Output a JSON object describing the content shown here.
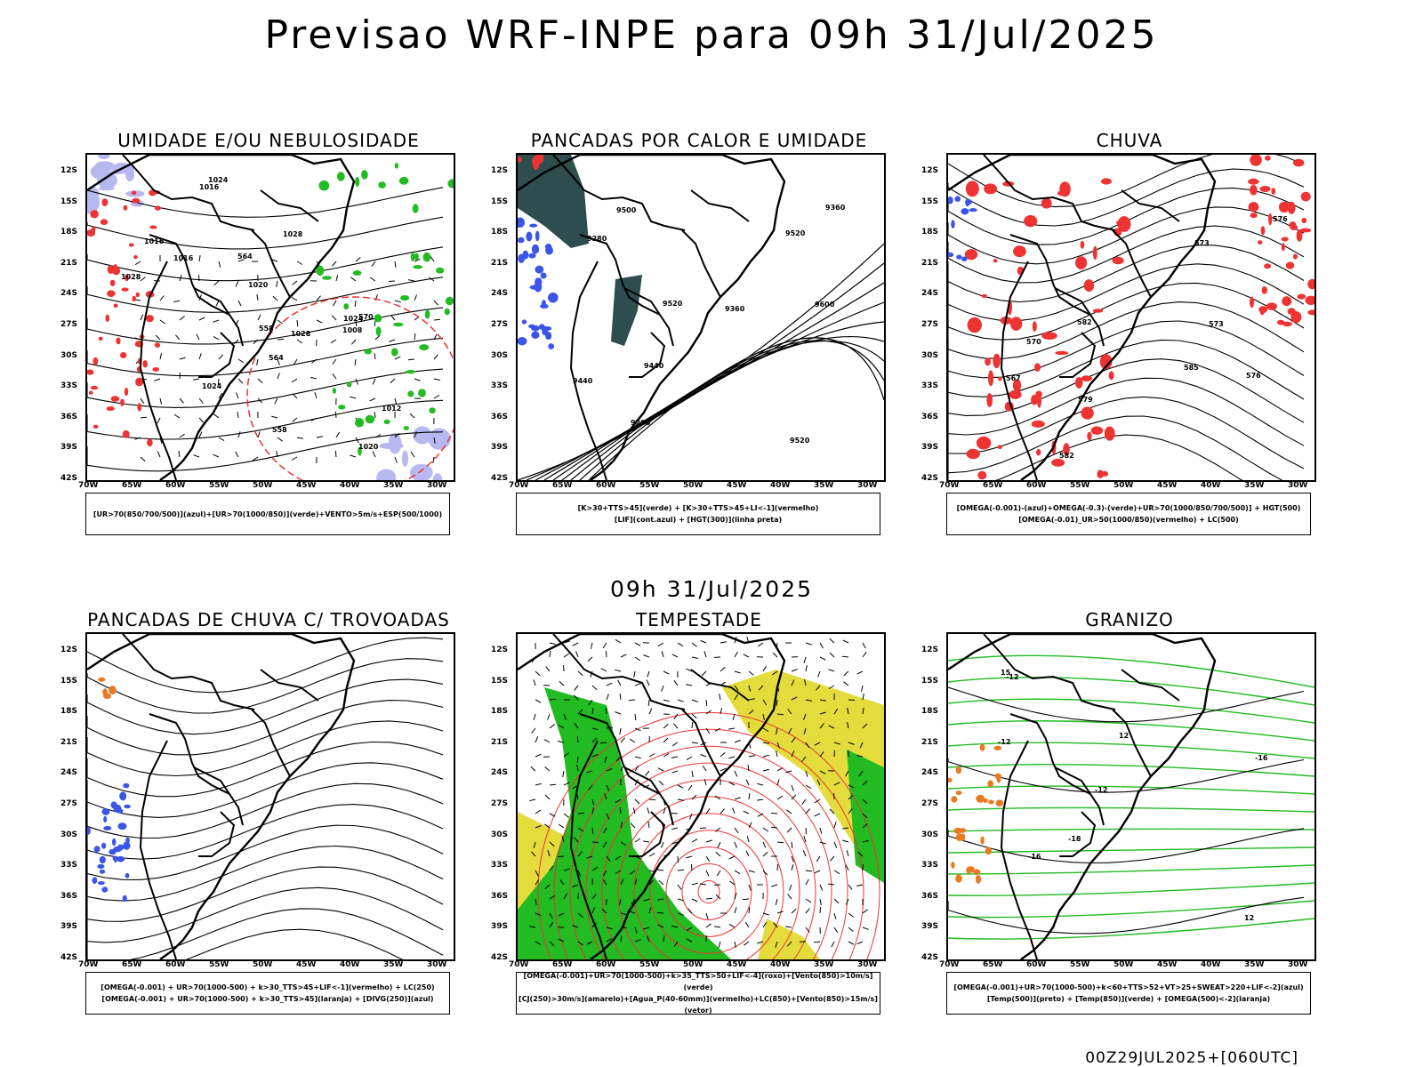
{
  "title": "Previsao WRF-INPE  para 09h 31/Jul/2025",
  "mid_title": "09h 31/Jul/2025",
  "footer": "00Z29JUL2025+[060UTC]",
  "axes": {
    "lat": [
      "12S",
      "15S",
      "18S",
      "21S",
      "24S",
      "27S",
      "30S",
      "33S",
      "36S",
      "39S",
      "42S"
    ],
    "lon": [
      "70W",
      "65W",
      "60W",
      "55W",
      "50W",
      "45W",
      "40W",
      "35W",
      "30W"
    ]
  },
  "colors": {
    "blue": "#3a55e8",
    "green": "#22bb22",
    "red": "#ee3333",
    "yellow": "#e4dc3c",
    "darkteal": "#2e4d4f",
    "lavender": "#b8b8f0",
    "orange": "#e87a22"
  },
  "panels": [
    {
      "title": "UMIDADE E/OU NEBULOSIDADE",
      "legend": [
        "[UR>70(850/700/500)](azul)+[UR>70(1000/850)](verde)+VENTO>5m/s+ESP(500/1000)"
      ],
      "labels": [
        "1016",
        "1016",
        "1020",
        "1016",
        "1024",
        "1028",
        "1028",
        "1028",
        "1012",
        "1008",
        "1024",
        "1024",
        "1020",
        "570",
        "564",
        "558",
        "564",
        "558"
      ]
    },
    {
      "title": "PANCADAS POR CALOR E UMIDADE",
      "legend": [
        "[K>30+TTS>45](verde) + [K>30+TTS>45+LI<-1](vermelho)",
        "[LIF](cont.azul) + [HGT(300)](linha preta)"
      ],
      "labels": [
        "9500",
        "9600",
        "9520",
        "9520",
        "9440",
        "9280",
        "9360",
        "9200",
        "9440",
        "9360",
        "9520"
      ]
    },
    {
      "title": "CHUVA",
      "legend": [
        "[OMEGA(-0.001)-(azul)+OMEGA(-0.3)-(verde)+UR>70(1000/850/700/500)] + HGT(500)",
        "[OMEGA(-0.01)_UR>50(1000/850)(vermelho) + LC(500)"
      ],
      "labels": [
        "582",
        "585",
        "582",
        "579",
        "576",
        "573",
        "570",
        "576",
        "573",
        "567"
      ]
    },
    {
      "title": "PANCADAS DE CHUVA C/ TROVOADAS",
      "legend": [
        "[OMEGA(-0.001) + UR>70(1000-500) + k>30_TTS>45+LIF<-1](vermelho) + LC(250)",
        "[OMEGA(-0.001) + UR>70(1000-500) + k>30_TTS>45](laranja) + [DIVG(250)](azul)"
      ],
      "labels": []
    },
    {
      "title": "TEMPESTADE",
      "legend": [
        "[OMEGA(-0.001)+UR>70(1000-500)+k>35_TTS>50+LIF<-4](roxo)+[Vento(850)>10m/s](verde)",
        "[CJ(250)>30m/s](amarelo)+[Agua_P(40-60mm)](vermelho)+LC(850)+[Vento(850)>15m/s](vetor)"
      ],
      "labels": []
    },
    {
      "title": "GRANIZO",
      "legend": [
        "[OMEGA(-0.001)+UR>70(1000-500)+k<60+TTS>52+VT>25+SWEAT>220+LIF<-2](azul)",
        "[Temp(500)](preto) + [Temp(850)](verde) + [OMEGA(500)<-2](laranja)"
      ],
      "labels": [
        "-12",
        "-12",
        "-16",
        "-16",
        "-18",
        "12",
        "12",
        "15",
        "-12"
      ]
    }
  ]
}
